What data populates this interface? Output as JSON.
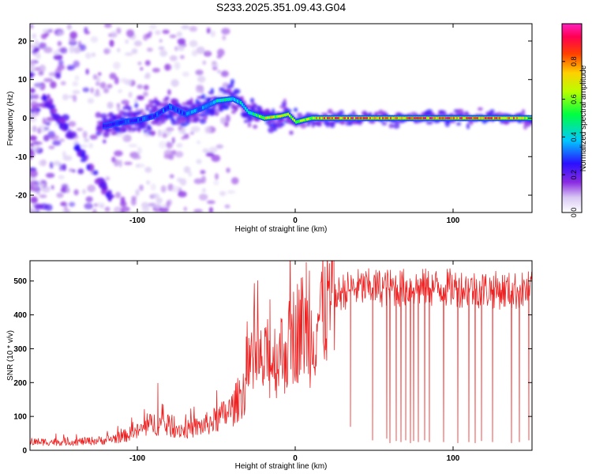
{
  "figure": {
    "title": "S233.2025.351.09.43.G04"
  },
  "chart_data": [
    {
      "type": "heatmap",
      "title": "S233.2025.351.09.43.G04",
      "xlabel": "Height of straight line (km)",
      "ylabel": "Frequency (Hz)",
      "xlim": [
        -168,
        150
      ],
      "ylim": [
        -24.5,
        24.5
      ],
      "xticks": [
        -100,
        0,
        100
      ],
      "xtick_labels": [
        "-100",
        "0",
        "100"
      ],
      "yticks": [
        -20,
        -10,
        0,
        10,
        20
      ],
      "ytick_labels": [
        "-20",
        "-10",
        "0",
        "10",
        "20"
      ],
      "grid": false,
      "colorbar": {
        "label": "Normalized spectral amplitude",
        "range": [
          0,
          1
        ],
        "ticks": [
          0.0,
          0.2,
          0.4,
          0.6,
          0.8
        ],
        "tick_labels": [
          "0.0",
          "0.2",
          "0.4",
          "0.6",
          "0.8"
        ],
        "colormap": "rainbow (white → purple → blue → cyan → green → yellow → orange → red → magenta)"
      },
      "ridge": [
        [
          -120,
          -2.0
        ],
        [
          -110,
          -1.0
        ],
        [
          -100,
          -0.5
        ],
        [
          -90,
          0.5
        ],
        [
          -80,
          3.0
        ],
        [
          -70,
          1.0
        ],
        [
          -60,
          2.5
        ],
        [
          -50,
          4.5
        ],
        [
          -40,
          5.0
        ],
        [
          -35,
          4.0
        ],
        [
          -30,
          1.5
        ],
        [
          -20,
          0.0
        ],
        [
          -10,
          0.5
        ],
        [
          -5,
          1.0
        ],
        [
          0,
          -1.0
        ],
        [
          5,
          -0.5
        ],
        [
          10,
          0.0
        ],
        [
          20,
          0.0
        ],
        [
          50,
          0.0
        ],
        [
          100,
          0.0
        ],
        [
          150,
          0.0
        ]
      ],
      "ridge_amplitude": [
        [
          -120,
          0.25
        ],
        [
          -100,
          0.3
        ],
        [
          -80,
          0.3
        ],
        [
          -60,
          0.35
        ],
        [
          -45,
          0.45
        ],
        [
          -30,
          0.4
        ],
        [
          -20,
          0.7
        ],
        [
          -10,
          0.75
        ],
        [
          0,
          0.6
        ],
        [
          10,
          0.7
        ],
        [
          20,
          0.9
        ],
        [
          60,
          0.85
        ],
        [
          100,
          0.9
        ],
        [
          140,
          0.8
        ],
        [
          150,
          0.55
        ]
      ]
    },
    {
      "type": "line",
      "xlabel": "Height of straight line (km)",
      "ylabel": "SNR (10 * v/v)",
      "xlim": [
        -168,
        150
      ],
      "ylim": [
        0,
        560
      ],
      "xticks": [
        -100,
        0,
        100
      ],
      "xtick_labels": [
        "-100",
        "0",
        "100"
      ],
      "yticks": [
        0,
        100,
        200,
        300,
        400,
        500
      ],
      "ytick_labels": [
        "0",
        "100",
        "200",
        "300",
        "400",
        "500"
      ],
      "grid": false,
      "series": [
        {
          "name": "SNR",
          "color": "#ee2222",
          "envelope": {
            "x": [
              -168,
              -140,
              -120,
              -110,
              -100,
              -90,
              -80,
              -70,
              -60,
              -50,
              -40,
              -30,
              -25,
              -20,
              -10,
              -5,
              0,
              5,
              10,
              15,
              20,
              25,
              30,
              40,
              50,
              60,
              80,
              100,
              120,
              140,
              150
            ],
            "y": [
              25,
              25,
              30,
              40,
              55,
              80,
              70,
              60,
              70,
              90,
              120,
              200,
              260,
              250,
              280,
              300,
              350,
              370,
              330,
              400,
              430,
              450,
              470,
              480,
              480,
              480,
              480,
              480,
              475,
              470,
              475
            ]
          },
          "spikes": [
            {
              "x": -87,
              "y": 198
            },
            {
              "x": -31,
              "y": 335
            },
            {
              "x": -16,
              "y": 445
            },
            {
              "x": -9,
              "y": 390
            },
            {
              "x": 7,
              "y": 555
            },
            {
              "x": 9,
              "y": 530
            }
          ],
          "dropouts": [
            {
              "x": 35,
              "y": 70
            },
            {
              "x": 49,
              "y": 30
            },
            {
              "x": 58,
              "y": 35
            },
            {
              "x": 60,
              "y": 22
            },
            {
              "x": 64,
              "y": 28
            },
            {
              "x": 67,
              "y": 25
            },
            {
              "x": 70,
              "y": 30
            },
            {
              "x": 73,
              "y": 22
            },
            {
              "x": 75,
              "y": 28
            },
            {
              "x": 78,
              "y": 25
            },
            {
              "x": 82,
              "y": 30
            },
            {
              "x": 85,
              "y": 25
            },
            {
              "x": 94,
              "y": 25
            },
            {
              "x": 103,
              "y": 22
            },
            {
              "x": 110,
              "y": 25
            },
            {
              "x": 114,
              "y": 22
            },
            {
              "x": 118,
              "y": 28
            },
            {
              "x": 125,
              "y": 25
            },
            {
              "x": 137,
              "y": 22
            },
            {
              "x": 142,
              "y": 25
            },
            {
              "x": 148,
              "y": 30
            }
          ]
        }
      ]
    }
  ]
}
